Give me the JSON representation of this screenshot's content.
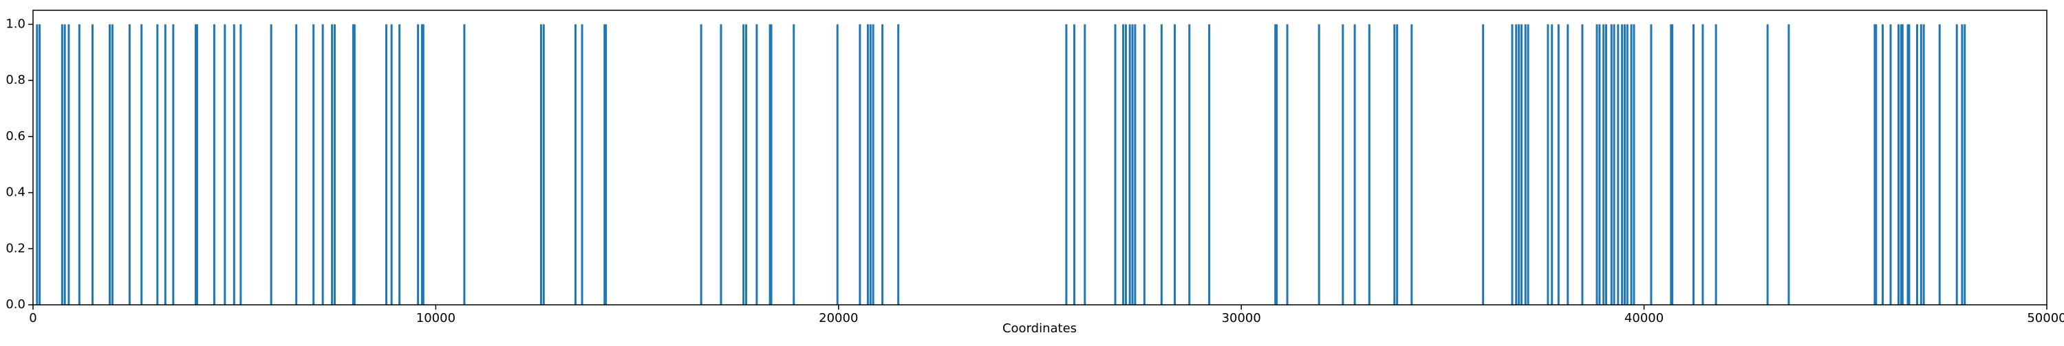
{
  "chart_data": {
    "type": "bar",
    "xlabel": "Coordinates",
    "color": "#1f77b4",
    "x": [
      100,
      164,
      723,
      789,
      887,
      1150,
      1478,
      1905,
      1971,
      2398,
      2694,
      3088,
      3285,
      3482,
      4040,
      4073,
      4500,
      4763,
      4993,
      5157,
      5913,
      6537,
      6964,
      7194,
      7424,
      7490,
      7950,
      7983,
      8771,
      8902,
      9099,
      9559,
      9658,
      9691,
      10709,
      12614,
      12680,
      13469,
      13633,
      14191,
      14224,
      16589,
      17082,
      17640,
      17706,
      17969,
      18297,
      18330,
      18889,
      19973,
      20531,
      20728,
      20794,
      20860,
      21090,
      21484,
      25656,
      25853,
      26116,
      26871,
      27068,
      27134,
      27232,
      27298,
      27364,
      27594,
      28021,
      28349,
      28711,
      29204,
      30846,
      30879,
      31142,
      31930,
      32522,
      32817,
      33179,
      33803,
      33869,
      34230,
      36004,
      36727,
      36825,
      36891,
      36957,
      37055,
      37121,
      37614,
      37713,
      37877,
      38107,
      38468,
      38829,
      38895,
      38994,
      39059,
      39191,
      39257,
      39355,
      39454,
      39520,
      39585,
      39684,
      39750,
      40177,
      40670,
      40702,
      41228,
      41458,
      41786,
      43067,
      43593,
      45728,
      45761,
      45925,
      46122,
      46319,
      46385,
      46418,
      46550,
      46583,
      46780,
      46879,
      46945,
      47339,
      47766,
      47897,
      47963
    ],
    "values": [
      1,
      1,
      1,
      1,
      1,
      1,
      1,
      1,
      1,
      1,
      1,
      1,
      1,
      1,
      1,
      1,
      1,
      1,
      1,
      1,
      1,
      1,
      1,
      1,
      1,
      1,
      1,
      1,
      1,
      1,
      1,
      1,
      1,
      1,
      1,
      1,
      1,
      1,
      1,
      1,
      1,
      1,
      1,
      1,
      1,
      1,
      1,
      1,
      1,
      1,
      1,
      1,
      1,
      1,
      1,
      1,
      1,
      1,
      1,
      1,
      1,
      1,
      1,
      1,
      1,
      1,
      1,
      1,
      1,
      1,
      1,
      1,
      1,
      1,
      1,
      1,
      1,
      1,
      1,
      1,
      1,
      1,
      1,
      1,
      1,
      1,
      1,
      1,
      1,
      1,
      1,
      1,
      1,
      1,
      1,
      1,
      1,
      1,
      1,
      1,
      1,
      1,
      1,
      1,
      1,
      1,
      1,
      1,
      1,
      1,
      1,
      1,
      1,
      1,
      1,
      1,
      1,
      1,
      1,
      1,
      1,
      1,
      1,
      1,
      1,
      1,
      1,
      1
    ],
    "xlim": [
      0,
      50000
    ],
    "xticks": [
      0,
      10000,
      20000,
      30000,
      40000,
      50000
    ],
    "ylim": [
      0,
      1.05
    ],
    "yticks": [
      {
        "value": 0,
        "label": "0.0"
      },
      {
        "value": 0.2,
        "label": "0.2"
      },
      {
        "value": 0.4,
        "label": "0.4"
      },
      {
        "value": 0.6,
        "label": "0.6"
      },
      {
        "value": 0.8,
        "label": "0.8"
      },
      {
        "value": 1,
        "label": "1.0"
      }
    ]
  }
}
